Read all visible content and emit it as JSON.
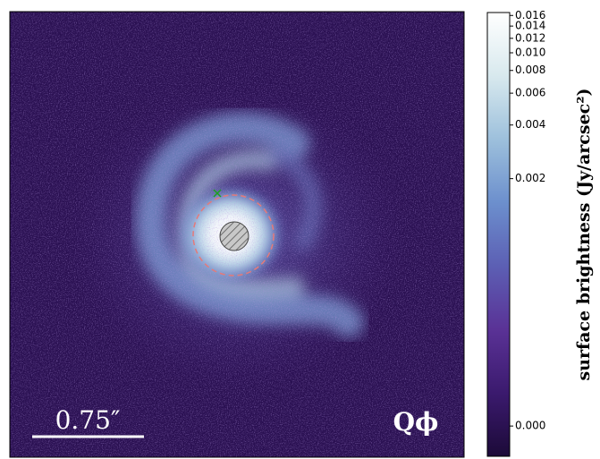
{
  "chart_data": {
    "type": "image",
    "colorbar_label": "surface brightness (Jy/arcsec²)",
    "annotations": [
      "0.75″",
      "Qϕ"
    ],
    "ylim": [
      -3e-05,
      0.0166
    ],
    "stretch": "log",
    "stretch_a": 255,
    "colormap": [
      "#1c0a38",
      "#3b1a6e",
      "#5a3296",
      "#5c5fb4",
      "#6c8fcd",
      "#9dc0dc",
      "#d8e9ee",
      "#ffffff"
    ],
    "yticks": [
      {
        "value": 0,
        "label": "0.000"
      },
      0.002,
      0.004,
      0.006,
      0.008,
      {
        "value": 0.01,
        "label": "0.010"
      },
      0.012,
      0.014,
      0.016
    ]
  }
}
